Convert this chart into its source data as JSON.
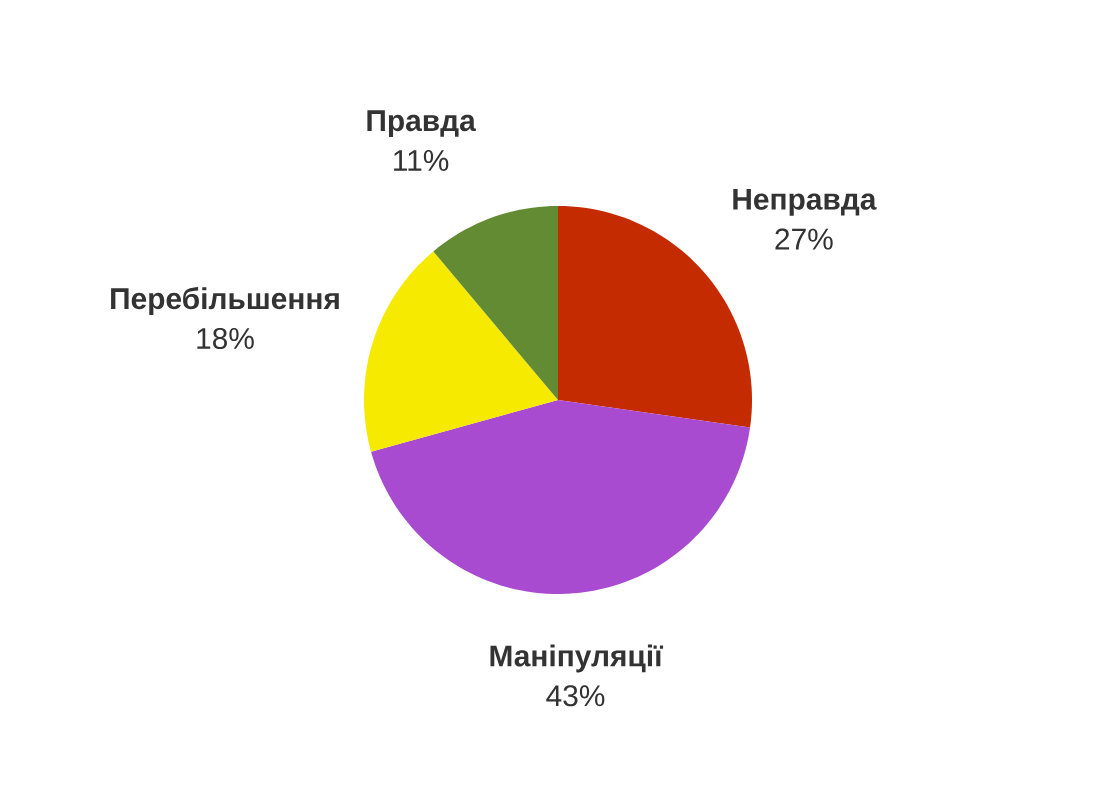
{
  "chart_data": {
    "type": "pie",
    "categories": [
      "Неправда",
      "Маніпуляції",
      "Перебільшення",
      "Правда"
    ],
    "values": [
      27,
      43,
      18,
      11
    ],
    "value_labels": [
      "27%",
      "43%",
      "18%",
      "11%"
    ],
    "colors": [
      "#c42b00",
      "#a84bd0",
      "#f5ea00",
      "#638b33"
    ]
  }
}
